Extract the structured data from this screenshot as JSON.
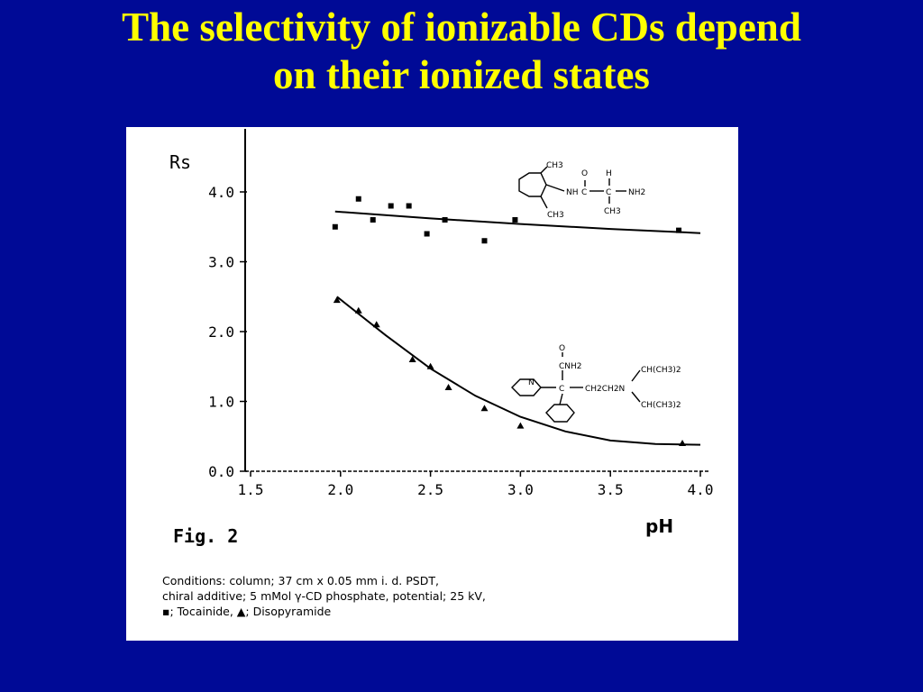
{
  "slide": {
    "title_line1": "The selectivity of ionizable CDs depend",
    "title_line2": "on their ionized states",
    "background_color": "#000a96",
    "title_color": "#ffff00"
  },
  "figure": {
    "label": "Fig. 2",
    "conditions_line1": "Conditions: column; 37 cm x 0.05 mm i. d. PSDT,",
    "conditions_line2": "chiral additive; 5 mMol γ-CD phosphate, potential; 25 kV,",
    "conditions_line3": "▪; Tocainide,  ▲; Disopyramide",
    "structure_top": {
      "labels": [
        "CH3",
        "O",
        "H",
        "NH",
        "C",
        "C",
        "NH2",
        "CH3",
        "CH3"
      ]
    },
    "structure_bottom": {
      "labels": [
        "O",
        "CNH2",
        "N",
        "C",
        "CH2CH2N",
        "CH(CH3)2",
        "CH(CH3)2"
      ]
    }
  },
  "chart_data": {
    "type": "scatter",
    "xlabel": "pH",
    "ylabel": "Rs",
    "xlim": [
      1.5,
      4.0
    ],
    "ylim": [
      0.0,
      4.0
    ],
    "x_ticks": [
      1.5,
      2.0,
      2.5,
      3.0,
      3.5,
      4.0
    ],
    "x_tick_labels": [
      "1.5",
      "2.0",
      "2.5",
      "3.0",
      "3.5",
      "4.0"
    ],
    "y_ticks": [
      0.0,
      1.0,
      2.0,
      3.0,
      4.0
    ],
    "y_tick_labels": [
      "0.0",
      "1.0",
      "2.0",
      "3.0",
      "4.0"
    ],
    "grid": false,
    "series": [
      {
        "marker": "square",
        "points": [
          {
            "x": 1.97,
            "y": 3.5
          },
          {
            "x": 2.1,
            "y": 3.9
          },
          {
            "x": 2.18,
            "y": 3.6
          },
          {
            "x": 2.28,
            "y": 3.8
          },
          {
            "x": 2.38,
            "y": 3.8
          },
          {
            "x": 2.48,
            "y": 3.4
          },
          {
            "x": 2.58,
            "y": 3.6
          },
          {
            "x": 2.8,
            "y": 3.3
          },
          {
            "x": 2.97,
            "y": 3.6
          },
          {
            "x": 3.88,
            "y": 3.45
          }
        ],
        "fit": [
          {
            "x": 1.97,
            "y": 3.72
          },
          {
            "x": 2.5,
            "y": 3.62
          },
          {
            "x": 3.0,
            "y": 3.54
          },
          {
            "x": 3.5,
            "y": 3.47
          },
          {
            "x": 4.0,
            "y": 3.41
          }
        ]
      },
      {
        "marker": "triangle",
        "points": [
          {
            "x": 1.98,
            "y": 2.45
          },
          {
            "x": 2.1,
            "y": 2.3
          },
          {
            "x": 2.2,
            "y": 2.1
          },
          {
            "x": 2.4,
            "y": 1.6
          },
          {
            "x": 2.5,
            "y": 1.5
          },
          {
            "x": 2.6,
            "y": 1.2
          },
          {
            "x": 2.8,
            "y": 0.9
          },
          {
            "x": 3.0,
            "y": 0.65
          },
          {
            "x": 3.9,
            "y": 0.4
          }
        ],
        "fit": [
          {
            "x": 1.98,
            "y": 2.5
          },
          {
            "x": 2.25,
            "y": 1.95
          },
          {
            "x": 2.5,
            "y": 1.47
          },
          {
            "x": 2.75,
            "y": 1.08
          },
          {
            "x": 3.0,
            "y": 0.78
          },
          {
            "x": 3.25,
            "y": 0.57
          },
          {
            "x": 3.5,
            "y": 0.44
          },
          {
            "x": 3.75,
            "y": 0.39
          },
          {
            "x": 4.0,
            "y": 0.38
          }
        ]
      }
    ]
  }
}
